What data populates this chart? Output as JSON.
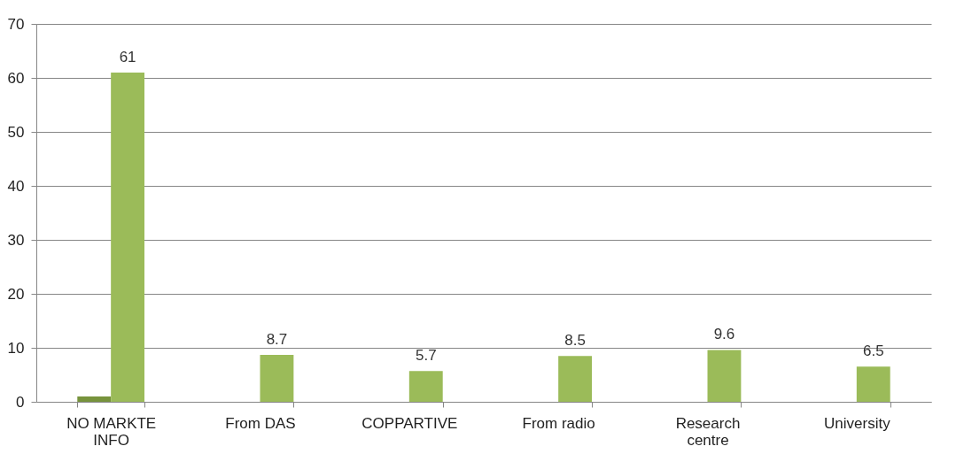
{
  "chart_data": {
    "type": "bar",
    "categories": [
      "NO MARKTE INFO",
      "From  DAS",
      "COPPARTIVE",
      "From radio",
      "Research centre",
      "University"
    ],
    "series": [
      {
        "color": "#77933c",
        "values": [
          1,
          null,
          null,
          null,
          null,
          null
        ]
      },
      {
        "color": "#9bbb59",
        "values": [
          61,
          8.7,
          5.7,
          8.5,
          9.6,
          6.5
        ],
        "value_labels": [
          "61",
          "8.7",
          "5.7",
          "8.5",
          "9.6",
          "6.5"
        ]
      }
    ],
    "ylim": [
      0,
      70
    ],
    "yticks": [
      0,
      10,
      20,
      30,
      40,
      50,
      60,
      70
    ],
    "grid": "y"
  }
}
